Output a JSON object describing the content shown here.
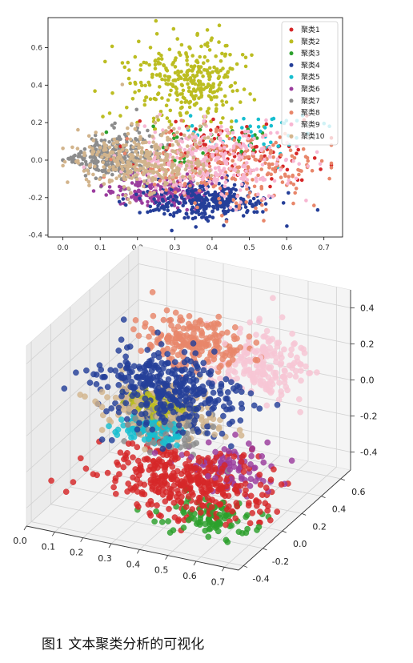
{
  "caption": "图1 文本聚类分析的可视化",
  "chart_data": [
    {
      "type": "scatter",
      "dims": 2,
      "title": "",
      "xlabel": "",
      "ylabel": "",
      "xlim": [
        -0.04,
        0.75
      ],
      "ylim": [
        -0.41,
        0.76
      ],
      "xticks": [
        0.0,
        0.1,
        0.2,
        0.3,
        0.4,
        0.5,
        0.6,
        0.7
      ],
      "xtick_labels": [
        "0.0",
        "0.1",
        "0.2",
        "0.3",
        "0.4",
        "0.5",
        "0.6",
        "0.7"
      ],
      "yticks": [
        -0.4,
        -0.2,
        0.0,
        0.2,
        0.4,
        0.6
      ],
      "ytick_labels": [
        "-0.4",
        "-0.2",
        "0.0",
        "0.2",
        "0.4",
        "0.6"
      ],
      "grid": false,
      "legend_position": "top-right",
      "series": [
        {
          "name": "聚类1",
          "color": "#d62728",
          "centroid": [
            0.45,
            0.05
          ],
          "spread": [
            0.12,
            0.08
          ]
        },
        {
          "name": "聚类2",
          "color": "#bcbd22",
          "centroid": [
            0.34,
            0.42
          ],
          "spread": [
            0.08,
            0.11
          ]
        },
        {
          "name": "聚类3",
          "color": "#2ca02c",
          "centroid": [
            0.4,
            0.1
          ],
          "spread": [
            0.1,
            0.07
          ]
        },
        {
          "name": "聚类4",
          "color": "#253f99",
          "centroid": [
            0.38,
            -0.22
          ],
          "spread": [
            0.08,
            0.05
          ]
        },
        {
          "name": "聚类5",
          "color": "#17becf",
          "centroid": [
            0.5,
            0.12
          ],
          "spread": [
            0.09,
            0.07
          ]
        },
        {
          "name": "聚类6",
          "color": "#9b3d9e",
          "centroid": [
            0.26,
            -0.17
          ],
          "spread": [
            0.07,
            0.04
          ]
        },
        {
          "name": "聚类7",
          "color": "#8c8c8c",
          "centroid": [
            0.13,
            0.02
          ],
          "spread": [
            0.06,
            0.07
          ]
        },
        {
          "name": "聚类8",
          "color": "#e8866a",
          "centroid": [
            0.46,
            -0.03
          ],
          "spread": [
            0.12,
            0.1
          ]
        },
        {
          "name": "聚类9",
          "color": "#f7b6d2",
          "centroid": [
            0.4,
            -0.02
          ],
          "spread": [
            0.1,
            0.1
          ]
        },
        {
          "name": "聚类10",
          "color": "#d2b48c",
          "centroid": [
            0.22,
            0.0
          ],
          "spread": [
            0.09,
            0.08
          ]
        }
      ]
    },
    {
      "type": "scatter",
      "dims": 3,
      "title": "",
      "xlabel": "",
      "ylabel": "",
      "zlabel": "",
      "xlim": [
        0.0,
        0.75
      ],
      "ylim": [
        -0.45,
        0.7
      ],
      "zlim": [
        -0.5,
        0.5
      ],
      "xticks": [
        0.0,
        0.1,
        0.2,
        0.3,
        0.4,
        0.5,
        0.6,
        0.7
      ],
      "xtick_labels": [
        "0.0",
        "0.1",
        "0.2",
        "0.3",
        "0.4",
        "0.5",
        "0.6",
        "0.7"
      ],
      "yticks": [
        -0.4,
        -0.2,
        0.0,
        0.2,
        0.4,
        0.6
      ],
      "ytick_labels": [
        "-0.4",
        "-0.2",
        "0.0",
        "0.2",
        "0.4",
        "0.6"
      ],
      "zticks": [
        -0.4,
        -0.2,
        0.0,
        0.2,
        0.4
      ],
      "ztick_labels": [
        "-0.4",
        "-0.2",
        "0.0",
        "0.2",
        "0.4"
      ],
      "grid": true,
      "series": [
        {
          "color": "#d62728",
          "centroid": [
            0.45,
            -0.1,
            -0.28
          ],
          "spread": [
            0.14,
            0.1,
            0.09
          ]
        },
        {
          "color": "#bcbd22",
          "centroid": [
            0.3,
            0.0,
            0.05
          ],
          "spread": [
            0.05,
            0.03,
            0.03
          ]
        },
        {
          "color": "#2ca02c",
          "centroid": [
            0.55,
            -0.15,
            -0.42
          ],
          "spread": [
            0.08,
            0.05,
            0.04
          ]
        },
        {
          "color": "#253f99",
          "centroid": [
            0.35,
            0.0,
            0.15
          ],
          "spread": [
            0.12,
            0.09,
            0.1
          ]
        },
        {
          "color": "#17becf",
          "centroid": [
            0.3,
            -0.05,
            -0.07
          ],
          "spread": [
            0.05,
            0.03,
            0.03
          ]
        },
        {
          "color": "#9b3d9e",
          "centroid": [
            0.55,
            0.0,
            -0.2
          ],
          "spread": [
            0.08,
            0.06,
            0.06
          ]
        },
        {
          "color": "#8c8c8c",
          "centroid": [
            0.35,
            0.0,
            -0.05
          ],
          "spread": [
            0.08,
            0.06,
            0.06
          ]
        },
        {
          "color": "#e8866a",
          "centroid": [
            0.35,
            0.25,
            0.3
          ],
          "spread": [
            0.09,
            0.06,
            0.06
          ]
        },
        {
          "color": "#f7c6d4",
          "centroid": [
            0.55,
            0.35,
            0.2
          ],
          "spread": [
            0.08,
            0.08,
            0.08
          ]
        },
        {
          "color": "#d2b48c",
          "centroid": [
            0.3,
            0.05,
            0.0
          ],
          "spread": [
            0.1,
            0.07,
            0.07
          ]
        }
      ]
    }
  ]
}
